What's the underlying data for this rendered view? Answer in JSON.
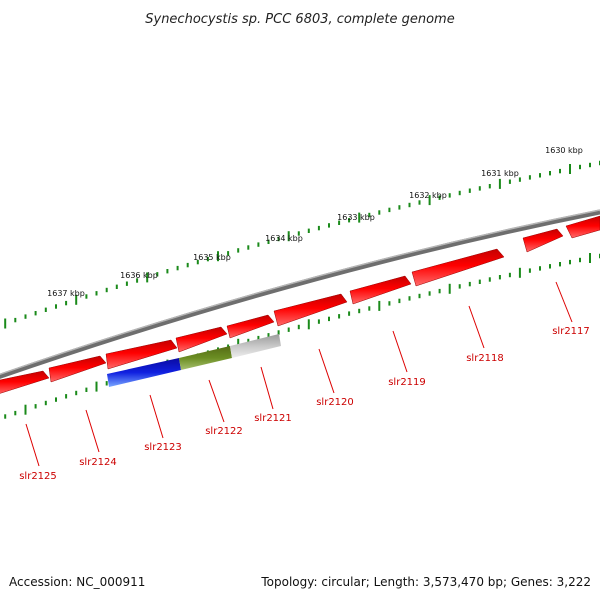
{
  "title": "Synechocystis sp. PCC 6803, complete genome",
  "footer": {
    "accession": "Accession: NC_000911",
    "topology": "Topology: circular; Length: 3,573,470 bp; Genes: 3,222"
  },
  "scale_labels": [
    "1630 kbp",
    "1631 kbp",
    "1632 kbp",
    "1633 kbp",
    "1634 kbp",
    "1635 kbp",
    "1636 kbp",
    "1637 kbp"
  ],
  "genes": [
    "slr2117",
    "slr2118",
    "slr2119",
    "slr2120",
    "slr2121",
    "slr2122",
    "slr2123",
    "slr2124",
    "slr2125"
  ],
  "colors": {
    "backbone": "#888888",
    "gene_fill": "#ff0000",
    "gene_label": "#cc0000",
    "tick": "#1a8a1a",
    "domain_blue": "#1020d8",
    "domain_green": "#6b8e23",
    "domain_gray": "#bdbdbd"
  }
}
